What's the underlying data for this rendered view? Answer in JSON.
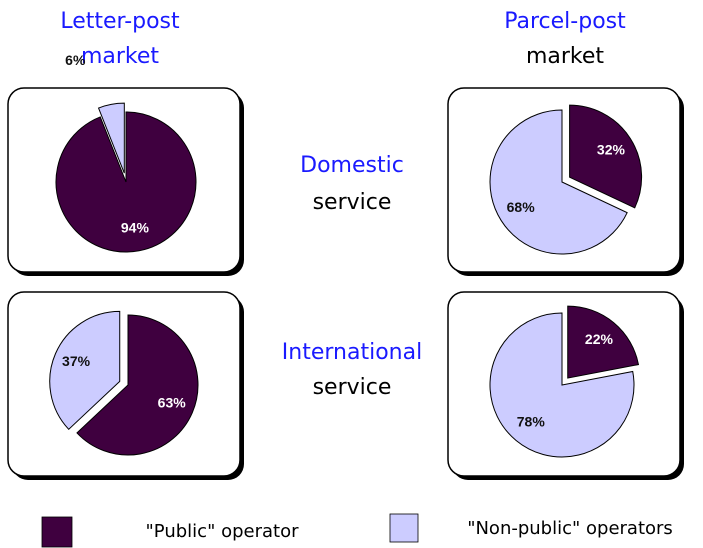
{
  "column_headers": [
    [
      "Letter-post",
      "market"
    ],
    [
      "Parcel-post",
      "market"
    ]
  ],
  "row_labels": [
    [
      "Domestic",
      "service"
    ],
    [
      "International",
      "service"
    ]
  ],
  "legend": [
    {
      "name": "\"Public\" operator",
      "color": "#3f003f"
    },
    {
      "name": "\"Non-public\" operators",
      "color": "#ccccff"
    }
  ],
  "chart_data": [
    {
      "type": "pie",
      "values": [
        94,
        6
      ],
      "value_labels": [
        "94%",
        "6%"
      ]
    },
    {
      "type": "pie",
      "values": [
        32,
        68
      ],
      "value_labels": [
        "32%",
        "68%"
      ]
    },
    {
      "type": "pie",
      "values": [
        63,
        37
      ],
      "value_labels": [
        "63%",
        "37%"
      ]
    },
    {
      "type": "pie",
      "values": [
        22,
        78
      ],
      "value_labels": [
        "22%",
        "78%"
      ]
    }
  ]
}
